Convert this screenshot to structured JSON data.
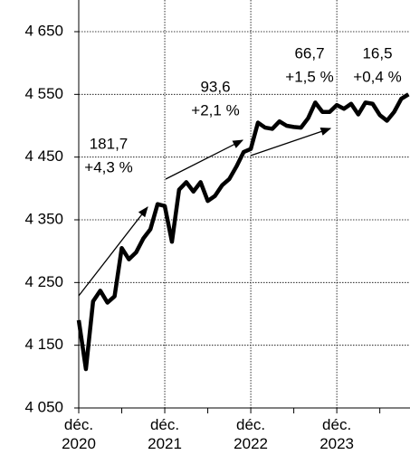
{
  "chart_data": {
    "type": "line",
    "categories": [
      "déc.\n2020",
      null,
      null,
      null,
      null,
      null,
      null,
      null,
      null,
      null,
      null,
      null,
      "déc.\n2021",
      null,
      null,
      null,
      null,
      null,
      null,
      null,
      null,
      null,
      null,
      null,
      "déc.\n2022",
      null,
      null,
      null,
      null,
      null,
      null,
      null,
      null,
      null,
      null,
      null,
      "déc.\n2023",
      null,
      null,
      null,
      null,
      null,
      null,
      null,
      null,
      null,
      null
    ],
    "series": [
      {
        "color": "#000000",
        "values": [
          4190,
          4112,
          4220,
          4237,
          4218,
          4228,
          4305,
          4287,
          4298,
          4320,
          4335,
          4375,
          4372,
          4315,
          4398,
          4410,
          4395,
          4410,
          4380,
          4388,
          4405,
          4415,
          4435,
          4458,
          4463,
          4505,
          4497,
          4495,
          4507,
          4500,
          4498,
          4497,
          4512,
          4537,
          4522,
          4522,
          4533,
          4527,
          4535,
          4518,
          4537,
          4535,
          4517,
          4508,
          4522,
          4543,
          4550
        ]
      }
    ],
    "ylim": [
      4050,
      4650
    ],
    "yticks": [
      {
        "value": 4050,
        "label": "4 050"
      },
      {
        "value": 4150,
        "label": "4 150"
      },
      {
        "value": 4250,
        "label": "4 250"
      },
      {
        "value": 4350,
        "label": "4 350"
      },
      {
        "value": 4450,
        "label": "4 450"
      },
      {
        "value": 4550,
        "label": "4 550"
      },
      {
        "value": 4650,
        "label": "4 650"
      }
    ],
    "grid": true,
    "annotations": [
      {
        "value": "181,7",
        "change": "+4,3 %"
      },
      {
        "value": "93,6",
        "change": "+2,1 %"
      },
      {
        "value": "66,7",
        "change": "+1,5 %"
      },
      {
        "value": "16,5",
        "change": "+0,4 %"
      }
    ]
  }
}
